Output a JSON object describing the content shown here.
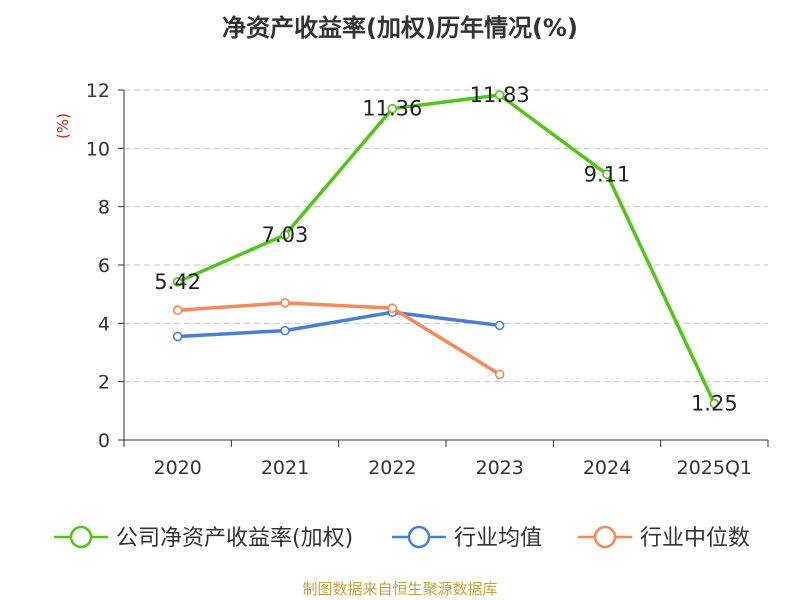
{
  "chart_data": {
    "type": "line",
    "title": "净资产收益率(加权)历年情况(%)",
    "ylabel": "(%)",
    "xlabel": "",
    "ylim": [
      0,
      12
    ],
    "y_ticks": [
      "0",
      "2",
      "4",
      "6",
      "8",
      "10",
      "12"
    ],
    "categories": [
      "2020",
      "2021",
      "2022",
      "2023",
      "2024",
      "2025Q1"
    ],
    "grid": true,
    "legend_position": "bottom",
    "series": [
      {
        "name": "公司净资产收益率(加权)",
        "color": "#52c41a",
        "values": [
          5.42,
          7.03,
          11.36,
          11.83,
          9.11,
          1.25
        ],
        "labels": [
          "5.42",
          "7.03",
          "11.36",
          "11.83",
          "9.11",
          "1.25"
        ]
      },
      {
        "name": "行业均值",
        "color": "#4a7fd8",
        "values": [
          3.55,
          3.75,
          4.38,
          3.93,
          null,
          null
        ]
      },
      {
        "name": "行业中位数",
        "color": "#f5895a",
        "values": [
          4.45,
          4.7,
          4.52,
          2.25,
          null,
          null
        ]
      }
    ]
  },
  "footer": {
    "source": "制图数据来自恒生聚源数据库"
  }
}
